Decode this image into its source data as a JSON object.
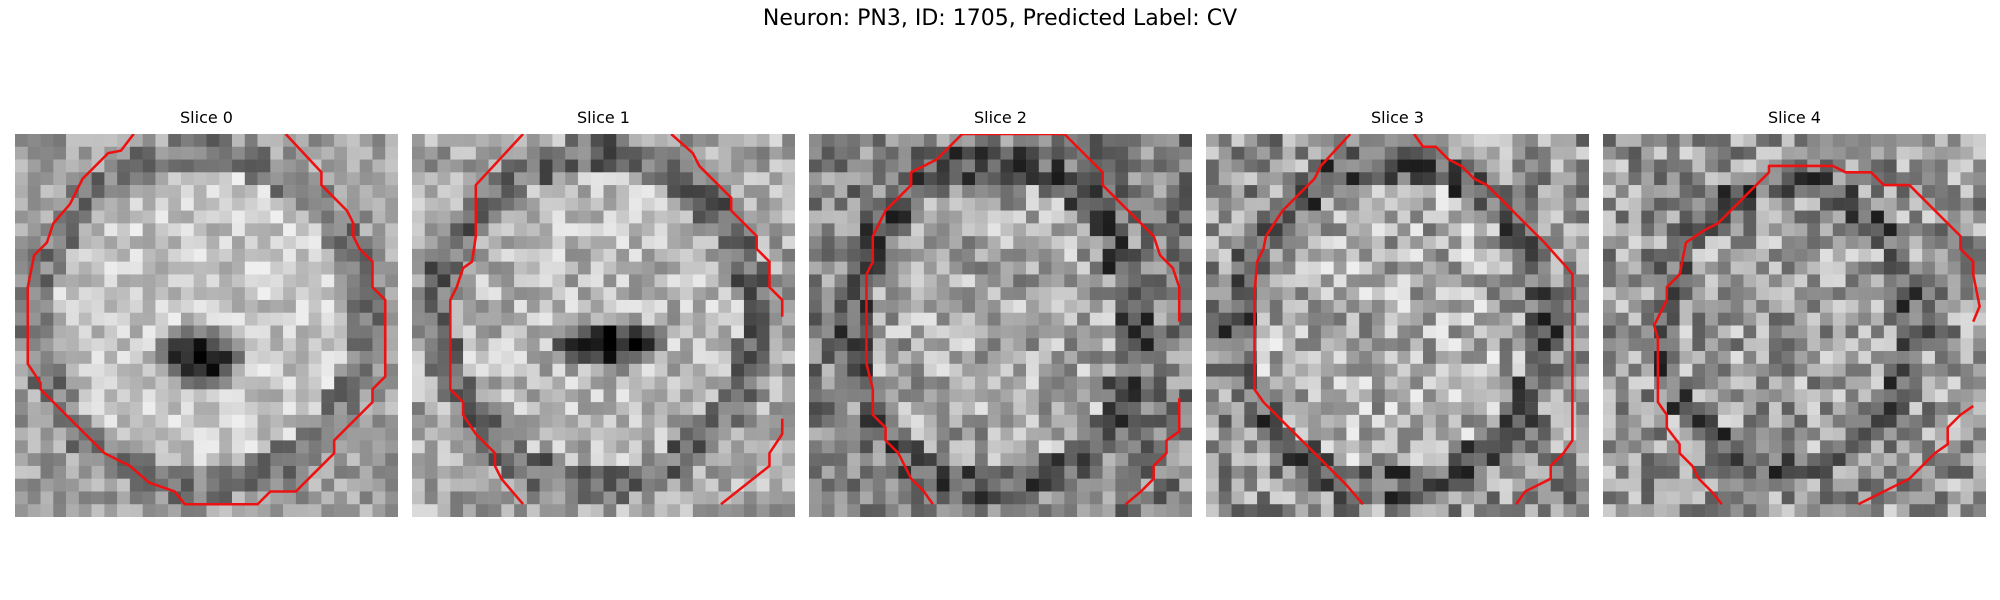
{
  "figure": {
    "title": "Neuron: PN3, ID: 1705, Predicted Label: CV"
  },
  "panels": [
    {
      "title": "Slice 0"
    },
    {
      "title": "Slice 1"
    },
    {
      "title": "Slice 2"
    },
    {
      "title": "Slice 3"
    },
    {
      "title": "Slice 4"
    }
  ],
  "colors": {
    "contour": "#ee1111",
    "background": "#ffffff"
  }
}
